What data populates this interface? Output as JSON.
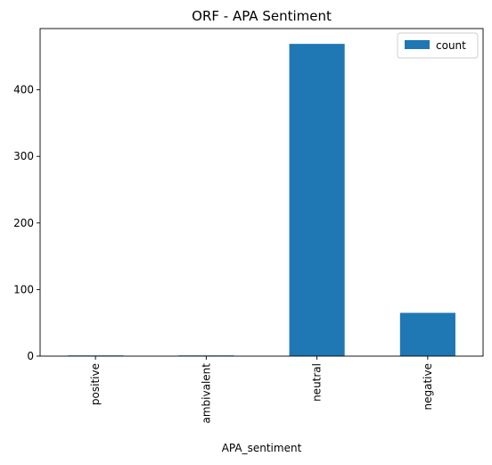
{
  "chart_data": {
    "type": "bar",
    "title": "ORF - APA Sentiment",
    "xlabel": "APA_sentiment",
    "ylabel": "",
    "categories": [
      "positive",
      "ambivalent",
      "neutral",
      "negative"
    ],
    "series": [
      {
        "name": "count",
        "values": [
          1,
          1,
          469,
          65
        ],
        "color": "#1f77b4"
      }
    ],
    "ylim": [
      0,
      492
    ],
    "yticks": [
      0,
      100,
      200,
      300,
      400
    ],
    "grid": false,
    "legend_position": "top-right"
  }
}
